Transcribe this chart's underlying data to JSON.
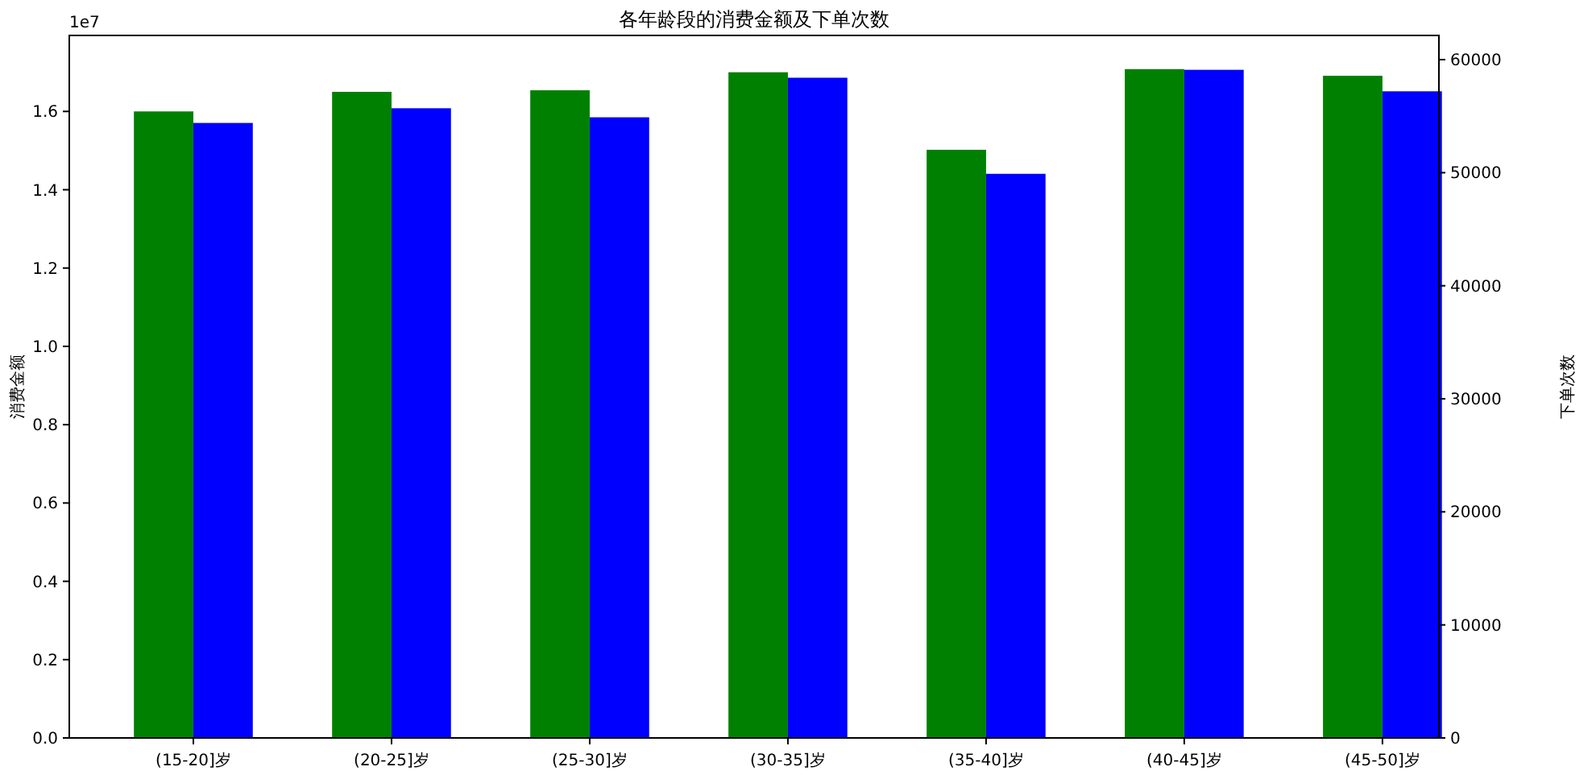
{
  "chart_data": {
    "type": "bar",
    "title": "各年龄段的消费金额及下单次数",
    "categories": [
      "(15-20]岁",
      "(20-25]岁",
      "(25-30]岁",
      "(30-35]岁",
      "(35-40]岁",
      "(40-45]岁",
      "(45-50]岁"
    ],
    "series": [
      {
        "color": "#008000",
        "values": [
          1.6,
          1.65,
          1.654,
          1.7,
          1.502,
          1.708,
          1.691
        ]
      },
      {
        "color": "#0000ff",
        "axis": "y2",
        "values": [
          54400,
          55700,
          54900,
          58400,
          49900,
          59100,
          57200
        ]
      }
    ],
    "ylabel": "消费金额",
    "y2label": "下单次数",
    "ylim": [
      0,
      1.794
    ],
    "yticks": [
      {
        "value": 0,
        "label": "0.0"
      },
      {
        "value": 0.2,
        "label": "0.2"
      },
      {
        "value": 0.4,
        "label": "0.4"
      },
      {
        "value": 0.6,
        "label": "0.6"
      },
      {
        "value": 0.8,
        "label": "0.8"
      },
      {
        "value": 1.0,
        "label": "1.0"
      },
      {
        "value": 1.2,
        "label": "1.2"
      },
      {
        "value": 1.4,
        "label": "1.4"
      },
      {
        "value": 1.6,
        "label": "1.6"
      }
    ],
    "y2lim": [
      0,
      62140
    ],
    "y2ticks": [
      0,
      10000,
      20000,
      30000,
      40000,
      50000,
      60000
    ],
    "annotations": [
      "1e7"
    ]
  }
}
